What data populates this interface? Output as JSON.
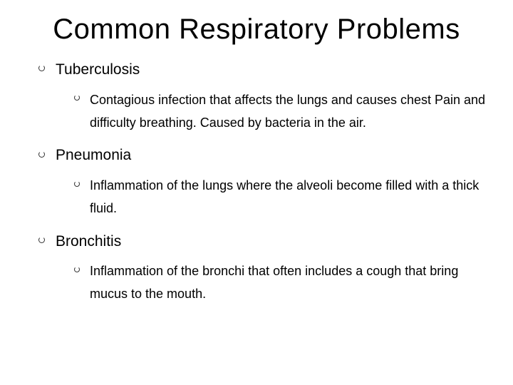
{
  "slide": {
    "title": "Common Respiratory Problems",
    "title_fontsize": 40,
    "background_color": "#ffffff",
    "text_color": "#000000",
    "bullet_ring_color": "#333333",
    "items": [
      {
        "label": "Tuberculosis",
        "sub": [
          "Contagious infection that affects the lungs and causes chest Pain and difficulty breathing. Caused by bacteria in the air."
        ]
      },
      {
        "label": "Pneumonia",
        "sub": [
          "Inflammation of the lungs where the alveoli become filled with a thick fluid."
        ]
      },
      {
        "label": "Bronchitis",
        "sub": [
          "Inflammation of the bronchi that often includes a cough that bring mucus to the mouth."
        ]
      }
    ],
    "level1_fontsize": 21,
    "level2_fontsize": 18
  }
}
